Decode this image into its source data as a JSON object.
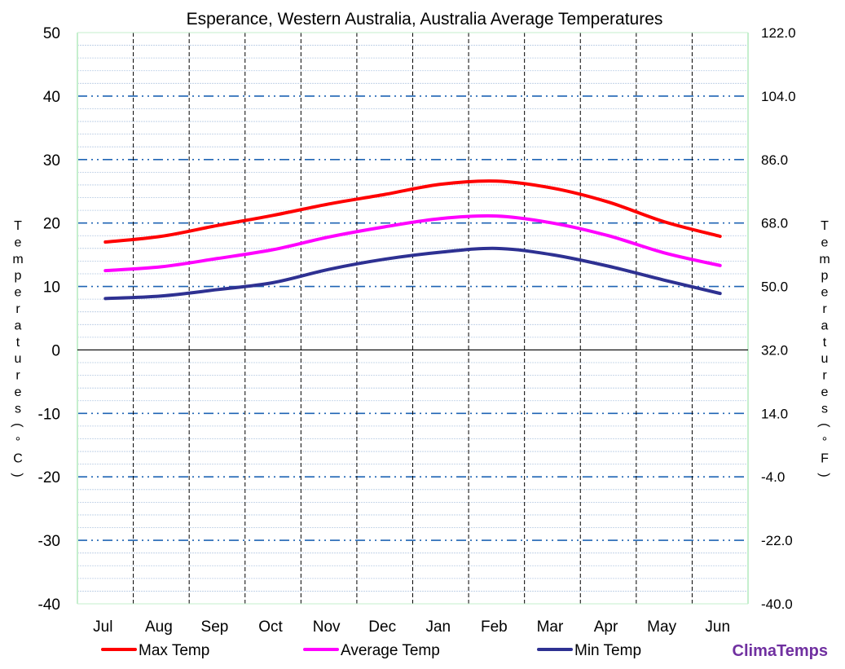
{
  "chart_data": {
    "type": "line",
    "title": "Esperance, Western Australia, Australia Average Temperatures",
    "categories": [
      "Jul",
      "Aug",
      "Sep",
      "Oct",
      "Nov",
      "Dec",
      "Jan",
      "Feb",
      "Mar",
      "Apr",
      "May",
      "Jun"
    ],
    "series": [
      {
        "name": "Max Temp",
        "color": "#ff0000",
        "values": [
          17.0,
          17.9,
          19.6,
          21.2,
          23.0,
          24.5,
          26.1,
          26.6,
          25.5,
          23.3,
          20.2,
          17.9
        ]
      },
      {
        "name": "Average Temp",
        "color": "#ff00ff",
        "values": [
          12.5,
          13.1,
          14.4,
          15.8,
          17.8,
          19.4,
          20.7,
          21.1,
          20.0,
          18.0,
          15.3,
          13.3
        ]
      },
      {
        "name": "Min Temp",
        "color": "#2e3192",
        "values": [
          8.1,
          8.5,
          9.5,
          10.6,
          12.7,
          14.3,
          15.4,
          16.0,
          15.0,
          13.2,
          11.0,
          8.9
        ]
      }
    ],
    "ylabel": "Temperatures (°C)",
    "ylabel_right": "Temperatures (°F)",
    "ylim": [
      -40,
      50
    ],
    "yticks_left": [
      "50",
      "40",
      "30",
      "20",
      "10",
      "0",
      "-10",
      "-20",
      "-30",
      "-40"
    ],
    "yticks_right": [
      "122.0",
      "104.0",
      "86.0",
      "68.0",
      "50.0",
      "32.0",
      "14.0",
      "-4.0",
      "-22.0",
      "-40.0"
    ],
    "grid": true,
    "legend_position": "bottom"
  },
  "brand": "ClimaTemps",
  "colors": {
    "major_grid": "#1f64b4",
    "minor_grid": "#b8cce4",
    "frame": "#c6efce",
    "month_divider": "#000000"
  }
}
